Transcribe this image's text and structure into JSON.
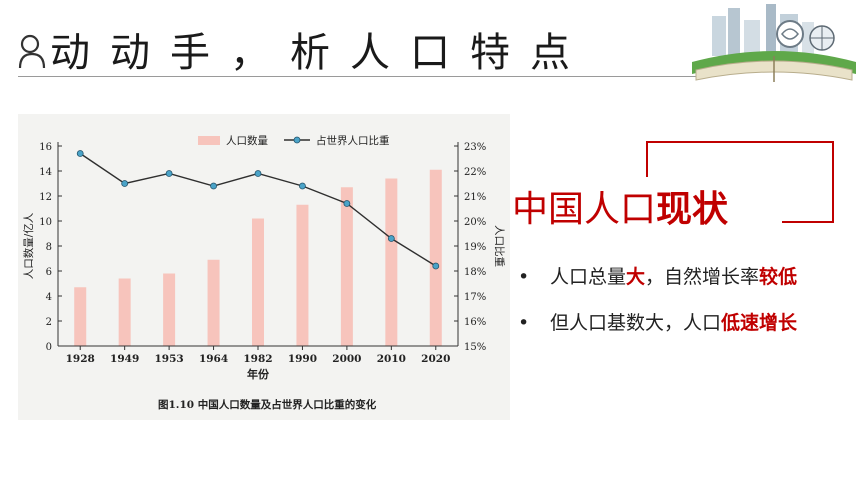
{
  "header": {
    "title": "动动手，析人口特点"
  },
  "panel": {
    "title_plain": "中国人口",
    "title_emphasis": "现状",
    "bullets": [
      {
        "parts": [
          {
            "text": "人口总量",
            "red": false
          },
          {
            "text": "大",
            "red": true
          },
          {
            "text": "，自然增长率",
            "red": false
          },
          {
            "text": "较低",
            "red": true
          }
        ]
      },
      {
        "parts": [
          {
            "text": "但人口基数大，人口",
            "red": false
          },
          {
            "text": "低速增长",
            "red": true
          }
        ]
      }
    ]
  },
  "chart_data": {
    "type": "bar",
    "caption": "图1.10  中国人口数量及占世界人口比重的变化",
    "categories": [
      "1928",
      "1949",
      "1953",
      "1964",
      "1982",
      "1990",
      "2000",
      "2010",
      "2020"
    ],
    "xlabel": "年份",
    "ylabel_left": "人口数量/亿人",
    "ylabel_right": "人口比重",
    "left_axis": {
      "min": 0,
      "max": 16,
      "ticks": [
        "0",
        "2",
        "4",
        "6",
        "8",
        "10",
        "12",
        "14",
        "16"
      ]
    },
    "right_axis": {
      "min": 15,
      "max": 23,
      "ticks": [
        "15%",
        "16%",
        "17%",
        "18%",
        "19%",
        "20%",
        "21%",
        "22%",
        "23%"
      ]
    },
    "series": [
      {
        "name": "人口数量",
        "type": "bar",
        "axis": "left",
        "color": "#f7c4bc",
        "values": [
          4.7,
          5.4,
          5.8,
          6.9,
          10.2,
          11.3,
          12.7,
          13.4,
          14.1
        ]
      },
      {
        "name": "占世界人口比重",
        "type": "line",
        "axis": "right",
        "color": "#2f2f2f",
        "marker_color": "#4aa3c8",
        "values": [
          22.7,
          21.5,
          21.9,
          21.4,
          21.9,
          21.4,
          20.7,
          19.3,
          18.2
        ]
      }
    ],
    "legend_position": "top",
    "grid": false
  }
}
